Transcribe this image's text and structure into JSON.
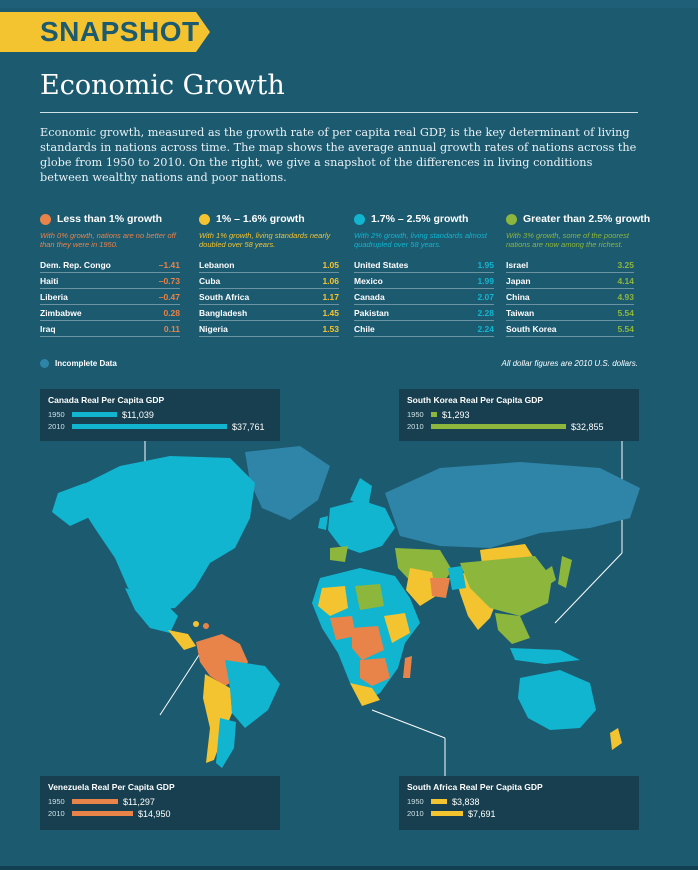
{
  "banner": "SNAPSHOT",
  "title": "Economic Growth",
  "intro": "Economic growth, measured as the growth rate of per capita real GDP, is the key determinant of living standards in nations across time. The map shows the average annual growth rates of nations across the globe from 1950 to 2010. On the right, we give a snapshot of the differences in living conditions between wealthy nations and poor nations.",
  "colors": {
    "orange": "#e8834a",
    "yellow": "#f4c430",
    "cyan": "#12b5cf",
    "green": "#8db63c",
    "incomplete": "#2e85a8",
    "background": "#1c5a70"
  },
  "legend": [
    {
      "label": "Less than 1% growth",
      "note": "With 0% growth, nations are no better off than they were in 1950.",
      "color": "#e8834a",
      "rows": [
        {
          "country": "Dem. Rep. Congo",
          "value": "–1.41"
        },
        {
          "country": "Haiti",
          "value": "–0.73"
        },
        {
          "country": "Liberia",
          "value": "–0.47"
        },
        {
          "country": "Zimbabwe",
          "value": "0.28"
        },
        {
          "country": "Iraq",
          "value": "0.11"
        }
      ]
    },
    {
      "label": "1% – 1.6% growth",
      "note": "With 1% growth, living standards nearly doubled over 58 years.",
      "color": "#f4c430",
      "rows": [
        {
          "country": "Lebanon",
          "value": "1.05"
        },
        {
          "country": "Cuba",
          "value": "1.06"
        },
        {
          "country": "South Africa",
          "value": "1.17"
        },
        {
          "country": "Bangladesh",
          "value": "1.45"
        },
        {
          "country": "Nigeria",
          "value": "1.53"
        }
      ]
    },
    {
      "label": "1.7% – 2.5% growth",
      "note": "With 2% growth, living standards almost quadrupled over 58 years.",
      "color": "#12b5cf",
      "rows": [
        {
          "country": "United States",
          "value": "1.95"
        },
        {
          "country": "Mexico",
          "value": "1.99"
        },
        {
          "country": "Canada",
          "value": "2.07"
        },
        {
          "country": "Pakistan",
          "value": "2.28"
        },
        {
          "country": "Chile",
          "value": "2.24"
        }
      ]
    },
    {
      "label": "Greater than 2.5% growth",
      "note": "With 3% growth, some of the poorest nations are now among the richest.",
      "color": "#8db63c",
      "rows": [
        {
          "country": "Israel",
          "value": "3.25"
        },
        {
          "country": "Japan",
          "value": "4.14"
        },
        {
          "country": "China",
          "value": "4.93"
        },
        {
          "country": "Taiwan",
          "value": "5.54"
        },
        {
          "country": "South Korea",
          "value": "5.54"
        }
      ]
    }
  ],
  "incomplete_label": "Incomplete Data",
  "dollar_note": "All dollar figures are 2010 U.S. dollars.",
  "gdp_boxes": {
    "canada": {
      "title": "Canada Real Per Capita GDP",
      "year1": "1950",
      "val1": "$11,039",
      "year2": "2010",
      "val2": "$37,761",
      "amount1": 11039,
      "amount2": 37761
    },
    "korea": {
      "title": "South Korea Real Per Capita GDP",
      "year1": "1950",
      "val1": "$1,293",
      "year2": "2010",
      "val2": "$32,855",
      "amount1": 1293,
      "amount2": 32855
    },
    "venezuela": {
      "title": "Venezuela Real Per Capita GDP",
      "year1": "1950",
      "val1": "$11,297",
      "year2": "2010",
      "val2": "$14,950",
      "amount1": 11297,
      "amount2": 14950
    },
    "southafrica": {
      "title": "South Africa Real Per Capita GDP",
      "year1": "1950",
      "val1": "$3,838",
      "year2": "2010",
      "val2": "$7,691",
      "amount1": 3838,
      "amount2": 7691
    }
  }
}
